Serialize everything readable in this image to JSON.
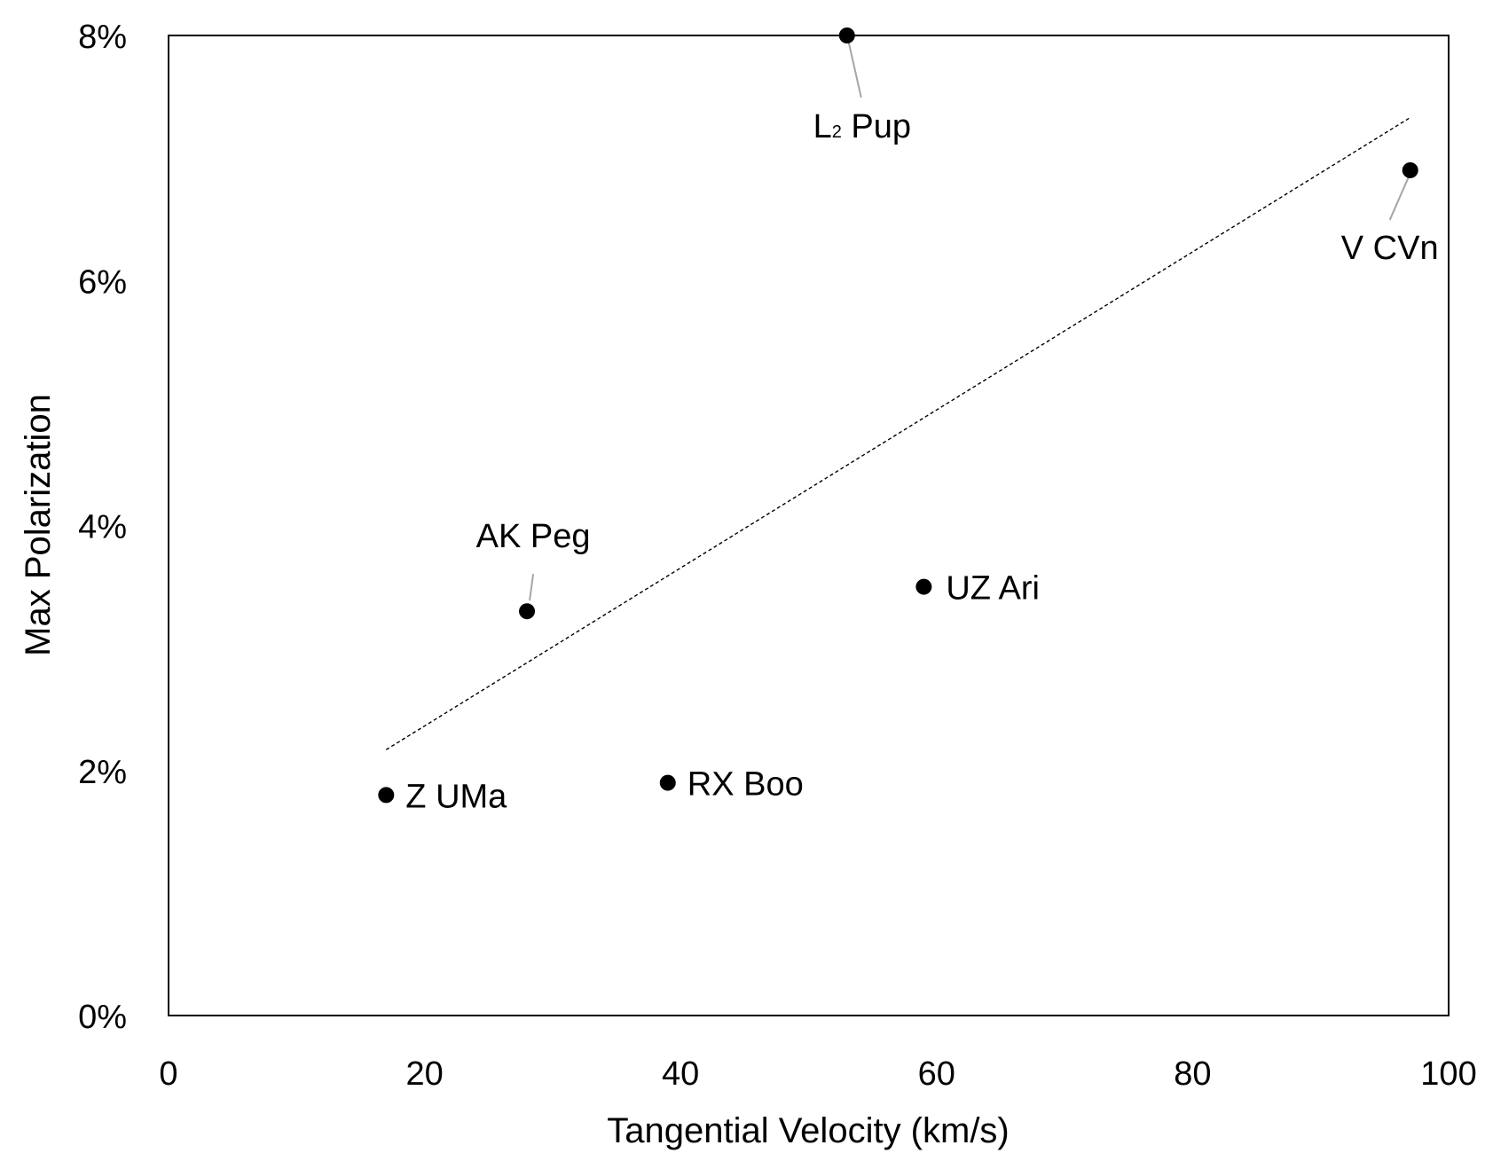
{
  "chart_data": {
    "type": "scatter",
    "title": "",
    "xlabel": "Tangential Velocity (km/s)",
    "ylabel": "Max Polarization",
    "xlim": [
      0,
      100
    ],
    "ylim": [
      0,
      8
    ],
    "x_ticks": [
      {
        "value": 0,
        "label": "0"
      },
      {
        "value": 20,
        "label": "20"
      },
      {
        "value": 40,
        "label": "40"
      },
      {
        "value": 60,
        "label": "60"
      },
      {
        "value": 80,
        "label": "80"
      },
      {
        "value": 100,
        "label": "100"
      }
    ],
    "y_ticks": [
      {
        "value": 0,
        "label": "0%"
      },
      {
        "value": 2,
        "label": "2%"
      },
      {
        "value": 4,
        "label": "4%"
      },
      {
        "value": 6,
        "label": "6%"
      },
      {
        "value": 8,
        "label": "8%"
      }
    ],
    "grid": false,
    "legend": "none",
    "marker_color": "#000000",
    "points": [
      {
        "name": "Z UMa",
        "x": 17,
        "y": 1.8
      },
      {
        "name": "AK Peg",
        "x": 28,
        "y": 3.3
      },
      {
        "name": "RX Boo",
        "x": 39,
        "y": 1.9
      },
      {
        "name": "L₂ Pup",
        "x": 53,
        "y": 8.0
      },
      {
        "name": "UZ Ari",
        "x": 59,
        "y": 3.5
      },
      {
        "name": "V CVn",
        "x": 97,
        "y": 6.9
      }
    ],
    "trendline": {
      "type": "linear",
      "style": "dotted",
      "color": "#000000",
      "points": [
        {
          "x": 17,
          "y": 2.17
        },
        {
          "x": 97,
          "y": 7.33
        }
      ]
    }
  }
}
